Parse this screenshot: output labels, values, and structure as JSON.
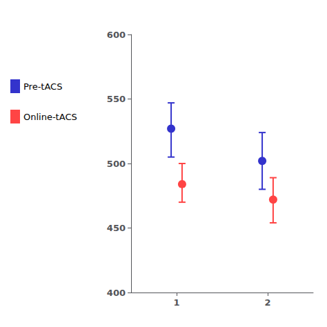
{
  "chart_data": {
    "type": "errorbar",
    "categories": [
      "1",
      "2"
    ],
    "series": [
      {
        "name": "Pre-tACS",
        "color": "#3333cc",
        "values": [
          527,
          502
        ],
        "yerr_lower": [
          22,
          22
        ],
        "yerr_upper": [
          20,
          22
        ]
      },
      {
        "name": "Online-tACS",
        "color": "#ff4444",
        "values": [
          484,
          472
        ],
        "yerr_lower": [
          14,
          18
        ],
        "yerr_upper": [
          16,
          17
        ]
      }
    ],
    "ylim": [
      400,
      600
    ],
    "yticks": [
      400,
      450,
      500,
      550,
      600
    ],
    "grid": false,
    "legend": "left",
    "marker": "circle"
  }
}
